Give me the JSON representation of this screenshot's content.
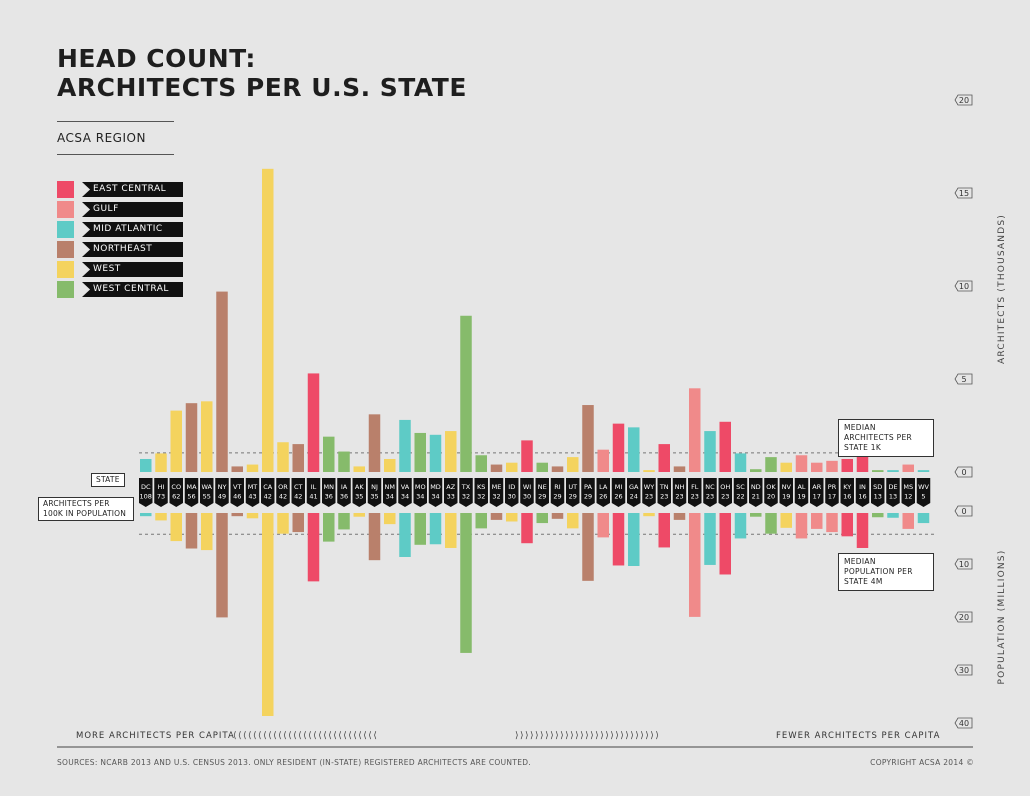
{
  "title_line1": "HEAD COUNT:",
  "title_line2": "ARCHITECTS PER U.S. STATE",
  "region_label": "ACSA REGION",
  "legend": [
    {
      "label": "EAST CENTRAL",
      "color": "#ee4a67"
    },
    {
      "label": "GULF",
      "color": "#f08a8a"
    },
    {
      "label": "MID ATLANTIC",
      "color": "#5ecbc6"
    },
    {
      "label": "NORTHEAST",
      "color": "#b9806b"
    },
    {
      "label": "WEST",
      "color": "#f4d35e"
    },
    {
      "label": "WEST CENTRAL",
      "color": "#86bb6b"
    }
  ],
  "labels": {
    "state": "STATE",
    "per_capita": "ARCHITECTS PER 100K IN POPULATION",
    "median_architects": "MEDIAN ARCHITECTS PER STATE 1K",
    "median_population": "MEDIAN POPULATION PER STATE 4M",
    "more_per_capita": "MORE ARCHITECTS PER CAPITA",
    "fewer_per_capita": "FEWER ARCHITECTS PER CAPITA",
    "chevrons_left": "⟨⟨⟨⟨⟨⟨⟨⟨⟨⟨⟨⟨⟨⟨⟨⟨⟨⟨⟨⟨⟨⟨⟨⟨⟨⟨⟨⟨⟨",
    "chevrons_right": "⟩⟩⟩⟩⟩⟩⟩⟩⟩⟩⟩⟩⟩⟩⟩⟩⟩⟩⟩⟩⟩⟩⟩⟩⟩⟩⟩⟩⟩",
    "y_top_title": "ARCHITECTS (THOUSANDS)",
    "y_bottom_title": "POPULATION (MILLIONS)",
    "sources": "SOURCES: NCARB 2013 AND U.S. CENSUS 2013. ONLY RESIDENT (IN-STATE) REGISTERED ARCHITECTS ARE COUNTED.",
    "copyright": "COPYRIGHT ACSA 2014 ©"
  },
  "chart_data": {
    "type": "bar",
    "title": "HEAD COUNT: ARCHITECTS PER U.S. STATE",
    "top_axis": {
      "label": "ARCHITECTS (THOUSANDS)",
      "ticks": [
        0,
        5,
        10,
        15,
        20
      ],
      "range": [
        0,
        20
      ]
    },
    "bottom_axis": {
      "label": "POPULATION (MILLIONS)",
      "ticks": [
        0,
        10,
        20,
        30,
        40
      ],
      "range": [
        0,
        40
      ]
    },
    "median_architects_thousands": 1,
    "median_population_millions": 4,
    "states": [
      {
        "state": "DC",
        "per100k": 108,
        "region": "MID ATLANTIC",
        "architects": 0.7,
        "population": 0.6
      },
      {
        "state": "HI",
        "per100k": 73,
        "region": "WEST",
        "architects": 1.0,
        "population": 1.4
      },
      {
        "state": "CO",
        "per100k": 62,
        "region": "WEST",
        "architects": 3.3,
        "population": 5.3
      },
      {
        "state": "MA",
        "per100k": 56,
        "region": "NORTHEAST",
        "architects": 3.7,
        "population": 6.7
      },
      {
        "state": "WA",
        "per100k": 55,
        "region": "WEST",
        "architects": 3.8,
        "population": 7.0
      },
      {
        "state": "NY",
        "per100k": 49,
        "region": "NORTHEAST",
        "architects": 9.7,
        "population": 19.7
      },
      {
        "state": "VT",
        "per100k": 46,
        "region": "NORTHEAST",
        "architects": 0.3,
        "population": 0.6
      },
      {
        "state": "MT",
        "per100k": 43,
        "region": "WEST",
        "architects": 0.4,
        "population": 1.0
      },
      {
        "state": "CA",
        "per100k": 42,
        "region": "WEST",
        "architects": 16.3,
        "population": 38.3
      },
      {
        "state": "OR",
        "per100k": 42,
        "region": "WEST",
        "architects": 1.6,
        "population": 3.9
      },
      {
        "state": "CT",
        "per100k": 42,
        "region": "NORTHEAST",
        "architects": 1.5,
        "population": 3.6
      },
      {
        "state": "IL",
        "per100k": 41,
        "region": "EAST CENTRAL",
        "architects": 5.3,
        "population": 12.9
      },
      {
        "state": "MN",
        "per100k": 36,
        "region": "WEST CENTRAL",
        "architects": 1.9,
        "population": 5.4
      },
      {
        "state": "IA",
        "per100k": 36,
        "region": "WEST CENTRAL",
        "architects": 1.1,
        "population": 3.1
      },
      {
        "state": "AK",
        "per100k": 35,
        "region": "WEST",
        "architects": 0.3,
        "population": 0.7
      },
      {
        "state": "NJ",
        "per100k": 35,
        "region": "NORTHEAST",
        "architects": 3.1,
        "population": 8.9
      },
      {
        "state": "NM",
        "per100k": 34,
        "region": "WEST",
        "architects": 0.7,
        "population": 2.1
      },
      {
        "state": "VA",
        "per100k": 34,
        "region": "MID ATLANTIC",
        "architects": 2.8,
        "population": 8.3
      },
      {
        "state": "MO",
        "per100k": 34,
        "region": "WEST CENTRAL",
        "architects": 2.1,
        "population": 6.0
      },
      {
        "state": "MD",
        "per100k": 34,
        "region": "MID ATLANTIC",
        "architects": 2.0,
        "population": 5.9
      },
      {
        "state": "AZ",
        "per100k": 33,
        "region": "WEST",
        "architects": 2.2,
        "population": 6.6
      },
      {
        "state": "TX",
        "per100k": 32,
        "region": "WEST CENTRAL",
        "architects": 8.4,
        "population": 26.4
      },
      {
        "state": "KS",
        "per100k": 32,
        "region": "WEST CENTRAL",
        "architects": 0.9,
        "population": 2.9
      },
      {
        "state": "ME",
        "per100k": 32,
        "region": "NORTHEAST",
        "architects": 0.4,
        "population": 1.3
      },
      {
        "state": "ID",
        "per100k": 30,
        "region": "WEST",
        "architects": 0.5,
        "population": 1.6
      },
      {
        "state": "WI",
        "per100k": 30,
        "region": "EAST CENTRAL",
        "architects": 1.7,
        "population": 5.7
      },
      {
        "state": "NE",
        "per100k": 29,
        "region": "WEST CENTRAL",
        "architects": 0.5,
        "population": 1.9
      },
      {
        "state": "RI",
        "per100k": 29,
        "region": "NORTHEAST",
        "architects": 0.3,
        "population": 1.1
      },
      {
        "state": "UT",
        "per100k": 29,
        "region": "WEST",
        "architects": 0.8,
        "population": 2.9
      },
      {
        "state": "PA",
        "per100k": 29,
        "region": "NORTHEAST",
        "architects": 3.6,
        "population": 12.8
      },
      {
        "state": "LA",
        "per100k": 26,
        "region": "GULF",
        "architects": 1.2,
        "population": 4.6
      },
      {
        "state": "MI",
        "per100k": 26,
        "region": "EAST CENTRAL",
        "architects": 2.6,
        "population": 9.9
      },
      {
        "state": "GA",
        "per100k": 24,
        "region": "MID ATLANTIC",
        "architects": 2.4,
        "population": 10.0
      },
      {
        "state": "WY",
        "per100k": 23,
        "region": "WEST",
        "architects": 0.1,
        "population": 0.6
      },
      {
        "state": "TN",
        "per100k": 23,
        "region": "EAST CENTRAL",
        "architects": 1.5,
        "population": 6.5
      },
      {
        "state": "NH",
        "per100k": 23,
        "region": "NORTHEAST",
        "architects": 0.3,
        "population": 1.3
      },
      {
        "state": "FL",
        "per100k": 23,
        "region": "GULF",
        "architects": 4.5,
        "population": 19.6
      },
      {
        "state": "NC",
        "per100k": 23,
        "region": "MID ATLANTIC",
        "architects": 2.2,
        "population": 9.8
      },
      {
        "state": "OH",
        "per100k": 23,
        "region": "EAST CENTRAL",
        "architects": 2.7,
        "population": 11.6
      },
      {
        "state": "SC",
        "per100k": 22,
        "region": "MID ATLANTIC",
        "architects": 1.0,
        "population": 4.8
      },
      {
        "state": "ND",
        "per100k": 21,
        "region": "WEST CENTRAL",
        "architects": 0.15,
        "population": 0.7
      },
      {
        "state": "OK",
        "per100k": 20,
        "region": "WEST CENTRAL",
        "architects": 0.8,
        "population": 3.9
      },
      {
        "state": "NV",
        "per100k": 19,
        "region": "WEST",
        "architects": 0.5,
        "population": 2.8
      },
      {
        "state": "AL",
        "per100k": 19,
        "region": "GULF",
        "architects": 0.9,
        "population": 4.8
      },
      {
        "state": "AR",
        "per100k": 17,
        "region": "GULF",
        "architects": 0.5,
        "population": 3.0
      },
      {
        "state": "PR",
        "per100k": 17,
        "region": "GULF",
        "architects": 0.6,
        "population": 3.6
      },
      {
        "state": "KY",
        "per100k": 16,
        "region": "EAST CENTRAL",
        "architects": 0.7,
        "population": 4.4
      },
      {
        "state": "IN",
        "per100k": 16,
        "region": "EAST CENTRAL",
        "architects": 1.0,
        "population": 6.6
      },
      {
        "state": "SD",
        "per100k": 13,
        "region": "WEST CENTRAL",
        "architects": 0.1,
        "population": 0.8
      },
      {
        "state": "DE",
        "per100k": 13,
        "region": "MID ATLANTIC",
        "architects": 0.1,
        "population": 0.9
      },
      {
        "state": "MS",
        "per100k": 12,
        "region": "GULF",
        "architects": 0.4,
        "population": 3.0
      },
      {
        "state": "WV",
        "per100k": 5,
        "region": "MID ATLANTIC",
        "architects": 0.1,
        "population": 1.9
      }
    ]
  }
}
